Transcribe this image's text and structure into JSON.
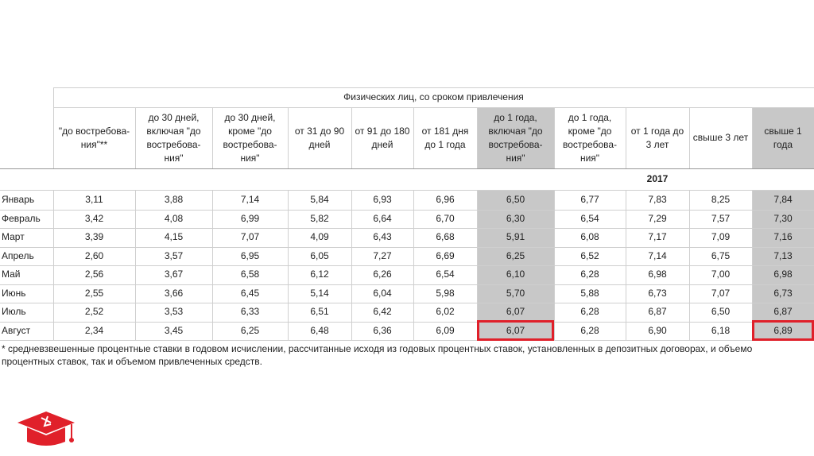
{
  "table": {
    "group_header": "Физических лиц, со сроком привлечения",
    "columns": [
      "\"до востребова-ния\"**",
      "до 30 дней, включая \"до востребова-ния\"",
      "до 30 дней, кроме \"до востребова-ния\"",
      "от 31 до 90 дней",
      "от 91 до 180 дней",
      "от 181 дня до 1 года",
      "до 1 года, включая \"до востребова-ния\"",
      "до 1 года, кроме \"до востребова-ния\"",
      "от 1 года до 3 лет",
      "свыше 3 лет",
      "свыше 1 года"
    ],
    "year": "2017",
    "rows": [
      {
        "label": "Январь",
        "values": [
          "3,11",
          "3,88",
          "7,14",
          "5,84",
          "6,93",
          "6,96",
          "6,50",
          "6,77",
          "7,83",
          "8,25",
          "7,84"
        ]
      },
      {
        "label": "Февраль",
        "values": [
          "3,42",
          "4,08",
          "6,99",
          "5,82",
          "6,64",
          "6,70",
          "6,30",
          "6,54",
          "7,29",
          "7,57",
          "7,30"
        ]
      },
      {
        "label": "Март",
        "values": [
          "3,39",
          "4,15",
          "7,07",
          "4,09",
          "6,43",
          "6,68",
          "5,91",
          "6,08",
          "7,17",
          "7,09",
          "7,16"
        ]
      },
      {
        "label": "Апрель",
        "values": [
          "2,60",
          "3,57",
          "6,95",
          "6,05",
          "7,27",
          "6,69",
          "6,25",
          "6,52",
          "7,14",
          "6,75",
          "7,13"
        ]
      },
      {
        "label": "Май",
        "values": [
          "2,56",
          "3,67",
          "6,58",
          "6,12",
          "6,26",
          "6,54",
          "6,10",
          "6,28",
          "6,98",
          "7,00",
          "6,98"
        ]
      },
      {
        "label": "Июнь",
        "values": [
          "2,55",
          "3,66",
          "6,45",
          "5,14",
          "6,04",
          "5,98",
          "5,70",
          "5,88",
          "6,73",
          "7,07",
          "6,73"
        ]
      },
      {
        "label": "Июль",
        "values": [
          "2,52",
          "3,53",
          "6,33",
          "6,51",
          "6,42",
          "6,02",
          "6,07",
          "6,28",
          "6,87",
          "6,50",
          "6,87"
        ]
      },
      {
        "label": "Август",
        "values": [
          "2,34",
          "3,45",
          "6,25",
          "6,48",
          "6,36",
          "6,09",
          "6,07",
          "6,28",
          "6,90",
          "6,18",
          "6,89"
        ]
      }
    ],
    "note": [
      "* средневзвешенные процентные ставки в годовом исчислении, рассчитанные исходя из годовых процентных ставок, установленных в депозитных договорах, и объемо",
      "процентных ставок, так и объемом привлеченных средств."
    ]
  }
}
